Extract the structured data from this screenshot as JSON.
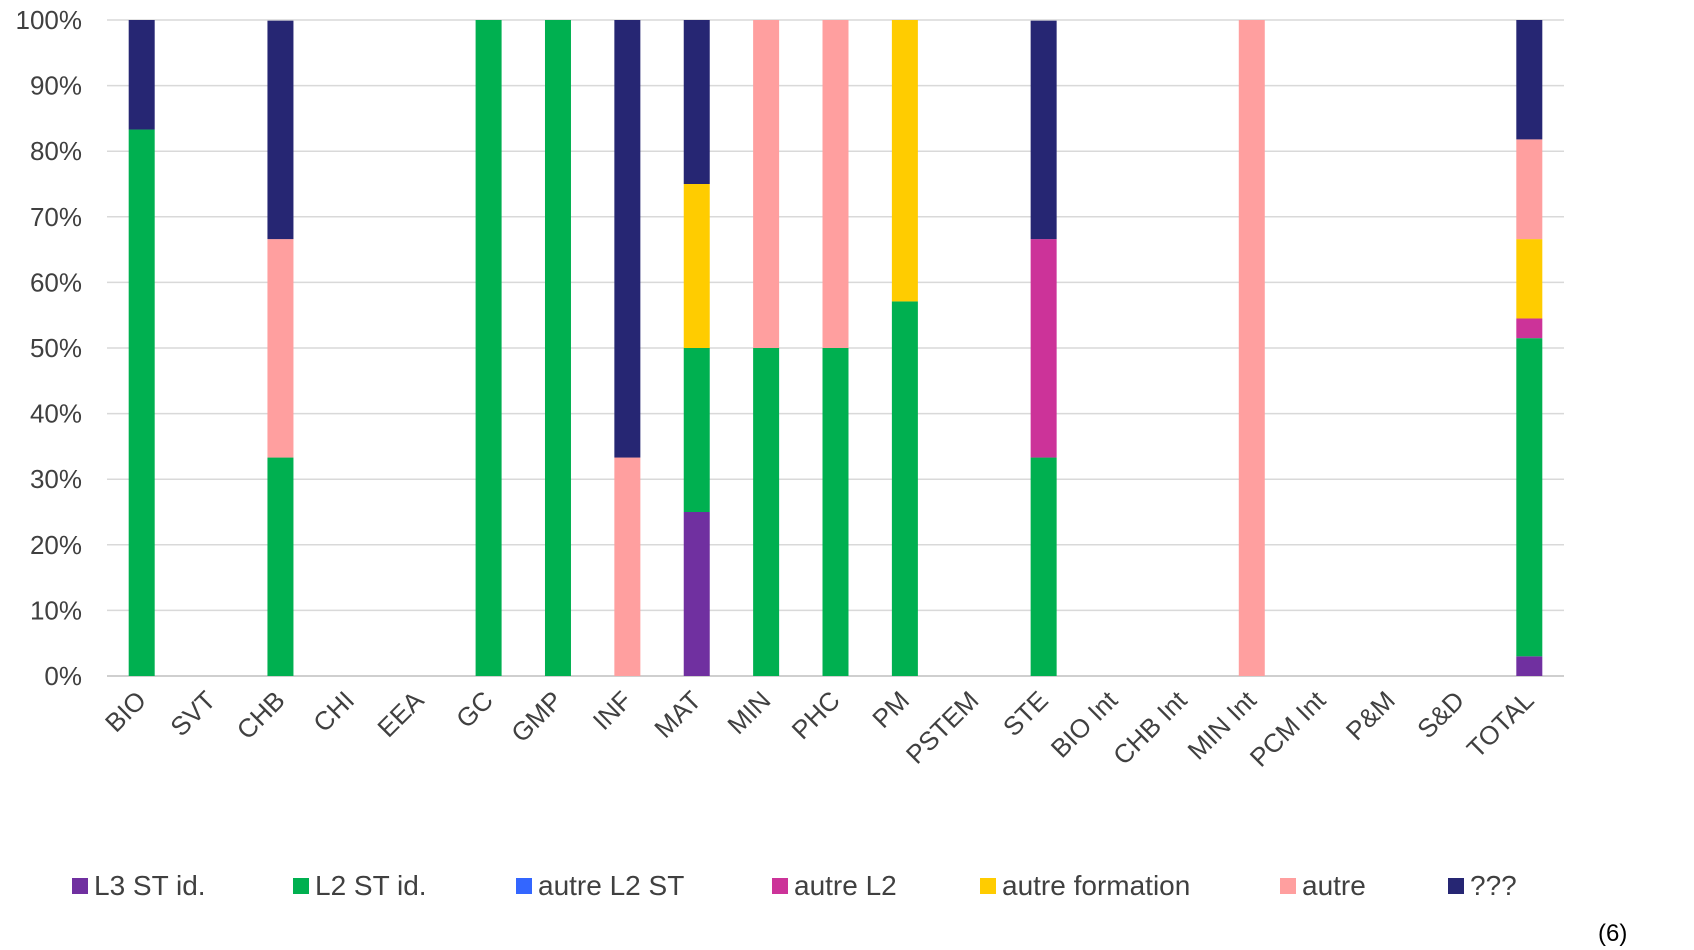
{
  "chart_data": {
    "type": "bar",
    "stacked": true,
    "percent": true,
    "categories": [
      "BIO",
      "SVT",
      "CHB",
      "CHI",
      "EEA",
      "GC",
      "GMP",
      "INF",
      "MAT",
      "MIN",
      "PHC",
      "PM",
      "PSTEM",
      "STE",
      "BIO Int",
      "CHB Int",
      "MIN Int",
      "PCM Int",
      "P&M",
      "S&D",
      "TOTAL"
    ],
    "series": [
      {
        "name": "L3 ST id.",
        "color": "#7030a0",
        "values": [
          0,
          0,
          0,
          0,
          0,
          0,
          0,
          0,
          25,
          0,
          0,
          0,
          0,
          0,
          0,
          0,
          0,
          0,
          0,
          0,
          3
        ]
      },
      {
        "name": "L2 ST id.",
        "color": "#00b050",
        "values": [
          83.3,
          0,
          33.3,
          0,
          0,
          100,
          100,
          0,
          25,
          50,
          50,
          57.1,
          0,
          33.3,
          0,
          0,
          0,
          0,
          0,
          0,
          48.5
        ]
      },
      {
        "name": "autre L2 ST",
        "color": "#3366ff",
        "values": [
          0,
          0,
          0,
          0,
          0,
          0,
          0,
          0,
          0,
          0,
          0,
          0,
          0,
          0,
          0,
          0,
          0,
          0,
          0,
          0,
          0
        ]
      },
      {
        "name": "autre L2",
        "color": "#cc3399",
        "values": [
          0,
          0,
          0,
          0,
          0,
          0,
          0,
          0,
          0,
          0,
          0,
          0,
          0,
          33.3,
          0,
          0,
          0,
          0,
          0,
          0,
          3
        ]
      },
      {
        "name": "autre formation",
        "color": "#ffcc00",
        "values": [
          0,
          0,
          0,
          0,
          0,
          0,
          0,
          0,
          25,
          0,
          0,
          42.9,
          0,
          0,
          0,
          0,
          0,
          0,
          0,
          0,
          12.1
        ]
      },
      {
        "name": "autre",
        "color": "#ff9f9f",
        "values": [
          0,
          0,
          33.3,
          0,
          0,
          0,
          0,
          33.3,
          0,
          50,
          50,
          0,
          0,
          0,
          0,
          0,
          100,
          0,
          0,
          0,
          15.2
        ]
      },
      {
        "name": "???",
        "color": "#262673",
        "values": [
          16.7,
          0,
          33.3,
          0,
          0,
          0,
          0,
          66.7,
          25,
          0,
          0,
          0,
          0,
          33.3,
          0,
          0,
          0,
          0,
          0,
          0,
          18.2
        ]
      }
    ],
    "yticks": [
      "0%",
      "10%",
      "20%",
      "30%",
      "40%",
      "50%",
      "60%",
      "70%",
      "80%",
      "90%",
      "100%"
    ],
    "ylim": [
      0,
      100
    ],
    "grid": true,
    "legend_position": "bottom",
    "footnote": "(6)"
  }
}
